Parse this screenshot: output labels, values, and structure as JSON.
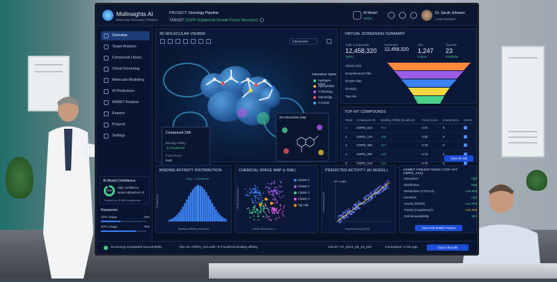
{
  "app": {
    "name": "MolInsights AI",
    "subtitle": "Molecular Discovery Platform",
    "project_label": "PROJECT:",
    "project": "Oncology Pipeline",
    "target_label": "TARGET:",
    "target": "EGFR (Epidermal Growth Factor Receptor)",
    "ai_model_label": "AI Model",
    "ai_model_status": "Active",
    "user_name": "Dr. Sarah Johnson",
    "user_role": "Lead Scientist"
  },
  "sidebar": {
    "items": [
      {
        "label": "Overview",
        "icon": "grid-icon"
      },
      {
        "label": "Target Analysis",
        "icon": "target-icon"
      },
      {
        "label": "Compound Library",
        "icon": "flask-icon"
      },
      {
        "label": "Virtual Screening",
        "icon": "filter-icon"
      },
      {
        "label": "Molecular Modelling",
        "icon": "cube-icon"
      },
      {
        "label": "AI Predictions",
        "icon": "brain-icon"
      },
      {
        "label": "ADMET Analysis",
        "icon": "pill-icon"
      },
      {
        "label": "Reports",
        "icon": "document-icon"
      },
      {
        "label": "Projects",
        "icon": "folder-icon"
      },
      {
        "label": "Settings",
        "icon": "gear-icon"
      }
    ],
    "confidence": {
      "title": "AI Model Confidence",
      "value": "92%",
      "fraction": 0.92,
      "line1": "High confidence",
      "line2": "Model AlphaDock v3",
      "line3": "Trained on 12.8M compounds"
    },
    "resources": {
      "title": "Resources",
      "cpu_label": "CPU Usage",
      "cpu_value": "43%",
      "cpu_fraction": 0.43,
      "gpu_label": "GPU Usage",
      "gpu_value": "76%",
      "gpu_fraction": 0.76
    }
  },
  "viewer": {
    "title": "3D MOLECULAR VIEWER",
    "dropdown": "Interactions",
    "legend_title": "Interaction Types",
    "legend": [
      {
        "label": "Hydrogen Bond",
        "color": "#47d18a"
      },
      {
        "label": "Hydrophobic",
        "color": "#e2b93b"
      },
      {
        "label": "π-Stacking",
        "color": "#b05ce6"
      },
      {
        "label": "Salt Bridge",
        "color": "#e05a5a"
      },
      {
        "label": "π-Cation",
        "color": "#3bb3e2"
      }
    ],
    "compound": {
      "name": "Compound 23A",
      "affinity_label": "Binding Affinity",
      "affinity_value": "-9.3 kcal/mol",
      "pose_label": "Pose Score",
      "pose_value": "0.87"
    },
    "map_title": "2D Interaction Map"
  },
  "screening": {
    "title": "VIRTUAL SCREENING SUMMARY",
    "total_label": "Total Compounds",
    "total_value": "12,458,320",
    "total_pct": "100%",
    "screened_label": "Screened",
    "screened_value": "12,458,320",
    "hits_label": "Hits",
    "hits_value": "1,247",
    "hits_pct": "0.01%",
    "tophits_label": "Top Hits",
    "tophits_value": "23",
    "tophits_pct": "0.0002%",
    "funnel": [
      {
        "label": "Library Size",
        "color": "#ff8a3d"
      },
      {
        "label": "Drug-likeness Filter",
        "color": "#9b5de5"
      },
      {
        "label": "PAINS Filter",
        "color": "#3b82f6"
      },
      {
        "label": "Docking",
        "color": "#f5d742"
      },
      {
        "label": "Top Hits",
        "color": "#47d18a"
      }
    ]
  },
  "top_hits": {
    "title": "TOP HIT COMPOUNDS",
    "columns": [
      "Rank",
      "Compound ID",
      "Binding Affinity (kcal/mol)",
      "Pose Score",
      "Interactions",
      "Select"
    ],
    "rows": [
      [
        "1",
        "CMPD_23A",
        "-9.3",
        "0.87",
        "6"
      ],
      [
        "2",
        "CMPD_178",
        "-8.9",
        "0.82",
        "5"
      ],
      [
        "3",
        "CMPD_45K",
        "-8.7",
        "0.78",
        "6"
      ],
      [
        "4",
        "CMPD_09F",
        "-8.5",
        "0.75",
        "5"
      ],
      [
        "5",
        "CMPD_11G",
        "-8.4",
        "0.76",
        "5"
      ]
    ],
    "view_all": "View All Hits"
  },
  "affinity_dist": {
    "title": "BINDING AFFINITY DISTRIBUTION",
    "annotation": "Avg: -7.2 kcal/mol",
    "xlabel": "Binding Affinity (kcal/mol)",
    "ylabel": "Frequency"
  },
  "chem_space": {
    "title": "CHEMICAL SPACE MAP (t-SNE)",
    "xlabel": "t-SNE Dimension 1",
    "ylabel": "t-SNE Dimension 2",
    "clusters": [
      {
        "label": "Cluster 1",
        "color": "#3b82f6"
      },
      {
        "label": "Cluster 2",
        "color": "#9b5de5"
      },
      {
        "label": "Cluster 3",
        "color": "#47d18a"
      },
      {
        "label": "Cluster 4",
        "color": "#e05ad6"
      },
      {
        "label": "Top Hits",
        "color": "#f59e0b"
      }
    ]
  },
  "predicted": {
    "title": "PREDICTED ACTIVITY (AI MODEL)",
    "r2": "R² = 0.85",
    "xlabel": "Experimental pIC50",
    "ylabel": "Predicted pIC50"
  },
  "admet": {
    "title": "ADMET PREDICTIONS (TOP HIT: CMPD_23A)",
    "rows": [
      {
        "label": "Absorption",
        "value": "High",
        "tone": "good"
      },
      {
        "label": "Distribution",
        "value": "High",
        "tone": "good"
      },
      {
        "label": "Metabolism (CYP3A4)",
        "value": "Low Risk",
        "tone": "good"
      },
      {
        "label": "Excretion",
        "value": "High",
        "tone": "good"
      },
      {
        "label": "Toxicity (hERG)",
        "value": "Low Risk",
        "tone": "good"
      },
      {
        "label": "Toxicity (Hepatotoxic)",
        "value": "Low Risk",
        "tone": "warn"
      },
      {
        "label": "Oral Bioavailability",
        "value": "85%",
        "tone": "good"
      }
    ],
    "report_button": "View Full ADMET Report"
  },
  "status": {
    "message": "Screening completed successfully!",
    "top_hit": "Top Hit: CMPD_23A with -9.3 kcal/mol binding affinity",
    "job": "Job ID: VS_2024_05_24_001",
    "completed": "Completed: 3 min ago",
    "export": "Export Results"
  }
}
